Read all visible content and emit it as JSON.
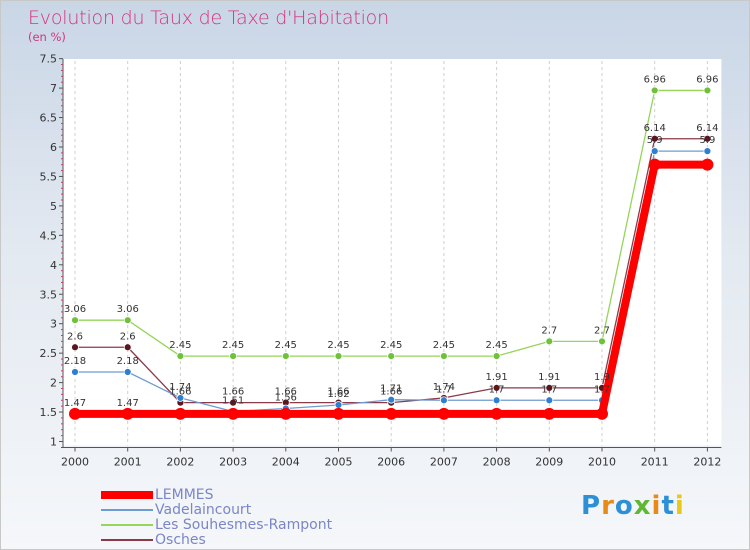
{
  "header": {
    "title": "Evolution du Taux de Taxe d'Habitation",
    "unit": "(en %)"
  },
  "logo": {
    "text": "Proxiti",
    "colors": [
      "#2d8fd5",
      "#e88a1a",
      "#2d8fd5",
      "#5fb833",
      "#e88a1a",
      "#2d8fd5",
      "#e8c81a"
    ]
  },
  "chart_data": {
    "type": "line",
    "title": "Evolution du Taux de Taxe d'Habitation",
    "ylabel": "(en %)",
    "xlabel": "",
    "x": [
      "2000",
      "2001",
      "2002",
      "2003",
      "2004",
      "2005",
      "2006",
      "2007",
      "2008",
      "2009",
      "2010",
      "2011",
      "2012"
    ],
    "ylim": [
      1,
      7.5
    ],
    "yticks": [
      "1",
      "1.5",
      "2",
      "2.5",
      "3",
      "3.5",
      "4",
      "4.5",
      "5",
      "5.5",
      "6",
      "6.5",
      "7",
      "7.5"
    ],
    "grid": "vertical-dashed",
    "legend_position": "bottom-left",
    "series": [
      {
        "name": "Les Souhesmes-Rampont",
        "color": "#96d55a",
        "marker": "#6ec23a",
        "width": 1.3,
        "values": [
          3.06,
          3.06,
          2.45,
          2.45,
          2.45,
          2.45,
          2.45,
          2.45,
          2.45,
          2.7,
          2.7,
          6.96,
          6.96
        ],
        "labels": [
          "3.06",
          "3.06",
          "2.45",
          "2.45",
          "2.45",
          "2.45",
          "2.45",
          "2.45",
          "2.45",
          "2.7",
          "2.7",
          "6.96",
          "6.96"
        ]
      },
      {
        "name": "Osches",
        "color": "#8c3a48",
        "marker": "#5c1620",
        "width": 1.3,
        "values": [
          2.6,
          2.6,
          1.66,
          1.66,
          1.66,
          1.66,
          1.66,
          1.74,
          1.91,
          1.91,
          1.91,
          6.14,
          6.14
        ],
        "labels": [
          "2.6",
          "2.6",
          "1.66",
          "1.66",
          "1.66",
          "1.66",
          "1.66",
          "1.74",
          "1.91",
          "1.91",
          "1.9",
          "6.14",
          "6.14"
        ]
      },
      {
        "name": "Vadelaincourt",
        "color": "#6e9bd2",
        "marker": "#2f7fd0",
        "width": 1.3,
        "values": [
          2.18,
          2.18,
          1.74,
          1.51,
          1.56,
          1.62,
          1.71,
          1.7,
          1.7,
          1.7,
          1.7,
          5.93,
          5.93
        ],
        "labels": [
          "2.18",
          "2.18",
          "1.74",
          "1.51",
          "1.56",
          "1.62",
          "1.71",
          "1.7",
          "1.7",
          "1.7",
          "1.7",
          "5.9",
          "5.9"
        ]
      },
      {
        "name": "LEMMES",
        "color": "#ff0000",
        "marker": "#ff0000",
        "width": 8,
        "values": [
          1.47,
          1.47,
          1.47,
          1.47,
          1.47,
          1.47,
          1.47,
          1.47,
          1.47,
          1.47,
          1.47,
          5.7,
          5.7
        ],
        "labels": [
          "1.47",
          "1.47",
          "",
          "",
          "",
          "",
          "",
          "",
          "",
          "",
          "",
          "",
          ""
        ]
      }
    ],
    "legend_order": [
      "LEMMES",
      "Vadelaincourt",
      "Les Souhesmes-Rampont",
      "Osches"
    ]
  }
}
